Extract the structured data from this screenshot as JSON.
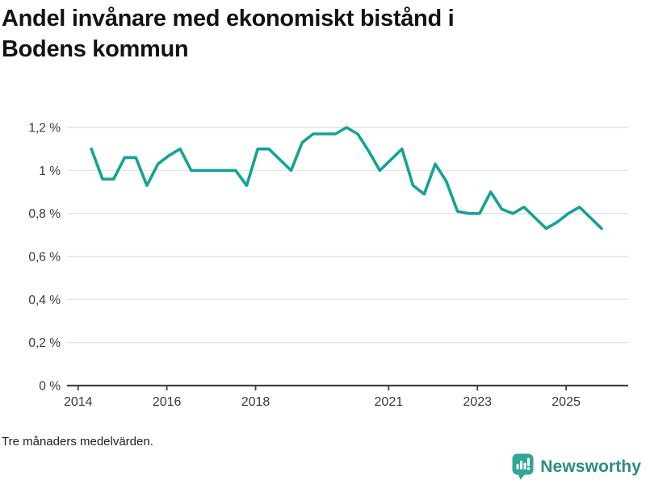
{
  "header": {
    "title_lines": [
      "Andel invånare med ekonomiskt bistånd i",
      "Bodens kommun"
    ]
  },
  "chart_data": {
    "type": "line",
    "title": "Andel invånare med ekonomiskt bistånd i Bodens kommun",
    "series_name": "Andel invånare med ekonomiskt bistånd",
    "unit": "%",
    "x": [
      2014.3,
      2014.55,
      2014.8,
      2015.05,
      2015.3,
      2015.55,
      2015.8,
      2016.05,
      2016.3,
      2016.55,
      2016.8,
      2017.05,
      2017.3,
      2017.55,
      2017.8,
      2018.05,
      2018.3,
      2018.55,
      2018.8,
      2019.05,
      2019.3,
      2019.55,
      2019.8,
      2020.05,
      2020.3,
      2020.55,
      2020.8,
      2021.05,
      2021.3,
      2021.55,
      2021.8,
      2022.05,
      2022.3,
      2022.55,
      2022.8,
      2023.05,
      2023.3,
      2023.55,
      2023.8,
      2024.05,
      2024.3,
      2024.55,
      2024.8,
      2025.05,
      2025.3,
      2025.55,
      2025.8
    ],
    "values": [
      1.1,
      0.96,
      0.96,
      1.06,
      1.06,
      0.93,
      1.03,
      1.07,
      1.1,
      1.0,
      1.0,
      1.0,
      1.0,
      1.0,
      0.93,
      1.1,
      1.1,
      1.05,
      1.0,
      1.13,
      1.17,
      1.17,
      1.17,
      1.2,
      1.17,
      1.09,
      1.0,
      1.05,
      1.1,
      0.93,
      0.89,
      1.03,
      0.95,
      0.81,
      0.8,
      0.8,
      0.9,
      0.82,
      0.8,
      0.83,
      0.78,
      0.73,
      0.76,
      0.8,
      0.83,
      0.78,
      0.73
    ],
    "xlim": [
      2013.75,
      2026.4
    ],
    "ylim": [
      0,
      1.2
    ],
    "yticks": [
      0,
      0.2,
      0.4,
      0.6,
      0.8,
      1.0,
      1.2
    ],
    "ytick_labels": [
      "0 %",
      "0,2 %",
      "0,4 %",
      "0,6 %",
      "0,8 %",
      "1 %",
      "1,2 %"
    ],
    "xticks": [
      2014,
      2016,
      2018,
      2021,
      2023,
      2025
    ],
    "xtick_labels": [
      "2014",
      "2016",
      "2018",
      "2021",
      "2023",
      "2025"
    ],
    "grid": "horizontal",
    "legend": "none",
    "line_color": "#14a297",
    "gridline_color": "#e4e4e4",
    "axis_color": "#424242",
    "tick_label_color": "#3a3a3a"
  },
  "footer": {
    "note": "Tre månaders medelvärden.",
    "brand": "Newsworthy",
    "logo_icon": "bar-chart-speech-bubble-icon",
    "logo_icon_color": "#2ea795",
    "logo_text_color": "#2e8b87"
  }
}
